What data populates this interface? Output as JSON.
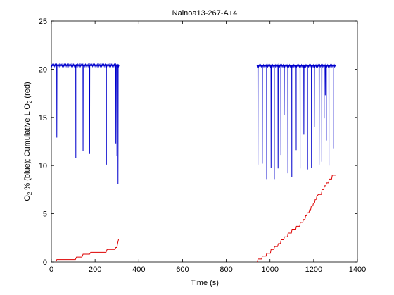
{
  "chart_data": {
    "type": "line",
    "title": "Nainoa13-267-A+4",
    "xlabel": "Time (s)",
    "ylabel": {
      "parts": [
        "O",
        "2",
        " % (blue); Cumulative L O",
        "2",
        " (red)"
      ]
    },
    "xlim": [
      0,
      1400
    ],
    "ylim": [
      0,
      25
    ],
    "xticks": [
      0,
      200,
      400,
      600,
      800,
      1000,
      1200,
      1400
    ],
    "yticks": [
      0,
      5,
      10,
      15,
      20,
      25
    ],
    "grid": false,
    "colors": {
      "o2": "#0000cc",
      "cumulative": "#dd0000"
    },
    "series": [
      {
        "key": "o2",
        "segments": [
          {
            "start": 0,
            "end": 310,
            "baseline": 20.4,
            "dips": [
              [
                25,
                12.9
              ],
              [
                112,
                10.8
              ],
              [
                145,
                11.5
              ],
              [
                175,
                11.2
              ],
              [
                252,
                10.1
              ],
              [
                295,
                12.3
              ],
              [
                300,
                11.0
              ],
              [
                305,
                8.1
              ]
            ]
          },
          {
            "start": 940,
            "end": 1300,
            "baseline": 20.35,
            "dips": [
              [
                945,
                10.1
              ],
              [
                965,
                10.2
              ],
              [
                985,
                8.6
              ],
              [
                1005,
                9.8
              ],
              [
                1020,
                8.6
              ],
              [
                1037,
                9.7
              ],
              [
                1050,
                11.1
              ],
              [
                1065,
                15.2
              ],
              [
                1082,
                9.2
              ],
              [
                1100,
                8.8
              ],
              [
                1120,
                11.6
              ],
              [
                1138,
                9.7
              ],
              [
                1155,
                13.2
              ],
              [
                1172,
                9.6
              ],
              [
                1190,
                9.8
              ],
              [
                1203,
                14.0
              ],
              [
                1225,
                10.1
              ],
              [
                1237,
                10.4
              ],
              [
                1248,
                14.9
              ],
              [
                1253,
                17.3
              ],
              [
                1258,
                12.6
              ],
              [
                1270,
                10.0
              ],
              [
                1290,
                11.8
              ]
            ]
          }
        ]
      },
      {
        "key": "cumulative",
        "points": [
          [
            20,
            0
          ],
          [
            25,
            0.25
          ],
          [
            110,
            0.25
          ],
          [
            115,
            0.5
          ],
          [
            140,
            0.5
          ],
          [
            145,
            0.8
          ],
          [
            175,
            0.8
          ],
          [
            180,
            1.0
          ],
          [
            250,
            1.0
          ],
          [
            255,
            1.3
          ],
          [
            290,
            1.3
          ],
          [
            295,
            1.5
          ],
          [
            300,
            1.5
          ],
          [
            302,
            1.8
          ],
          [
            305,
            2.1
          ],
          [
            308,
            2.4
          ],
          [
            942,
            0
          ],
          [
            945,
            0.3
          ],
          [
            962,
            0.3
          ],
          [
            965,
            0.6
          ],
          [
            982,
            0.6
          ],
          [
            985,
            0.9
          ],
          [
            1002,
            0.9
          ],
          [
            1005,
            1.3
          ],
          [
            1018,
            1.3
          ],
          [
            1021,
            1.6
          ],
          [
            1035,
            1.6
          ],
          [
            1038,
            1.9
          ],
          [
            1048,
            1.9
          ],
          [
            1051,
            2.3
          ],
          [
            1063,
            2.3
          ],
          [
            1066,
            2.6
          ],
          [
            1080,
            2.6
          ],
          [
            1083,
            3.0
          ],
          [
            1098,
            3.0
          ],
          [
            1101,
            3.4
          ],
          [
            1118,
            3.4
          ],
          [
            1121,
            3.7
          ],
          [
            1136,
            3.7
          ],
          [
            1139,
            4.1
          ],
          [
            1150,
            4.1
          ],
          [
            1153,
            4.4
          ],
          [
            1160,
            4.4
          ],
          [
            1163,
            4.8
          ],
          [
            1168,
            4.8
          ],
          [
            1171,
            5.1
          ],
          [
            1178,
            5.1
          ],
          [
            1181,
            5.4
          ],
          [
            1186,
            5.4
          ],
          [
            1189,
            5.8
          ],
          [
            1196,
            5.8
          ],
          [
            1199,
            6.1
          ],
          [
            1204,
            6.1
          ],
          [
            1207,
            6.5
          ],
          [
            1212,
            6.5
          ],
          [
            1215,
            6.9
          ],
          [
            1218,
            6.9
          ],
          [
            1221,
            7.0
          ],
          [
            1235,
            7.0
          ],
          [
            1238,
            7.5
          ],
          [
            1246,
            7.5
          ],
          [
            1249,
            7.9
          ],
          [
            1256,
            7.9
          ],
          [
            1259,
            8.2
          ],
          [
            1268,
            8.2
          ],
          [
            1271,
            8.6
          ],
          [
            1282,
            8.6
          ],
          [
            1285,
            9.0
          ],
          [
            1300,
            9.0
          ]
        ]
      }
    ]
  }
}
